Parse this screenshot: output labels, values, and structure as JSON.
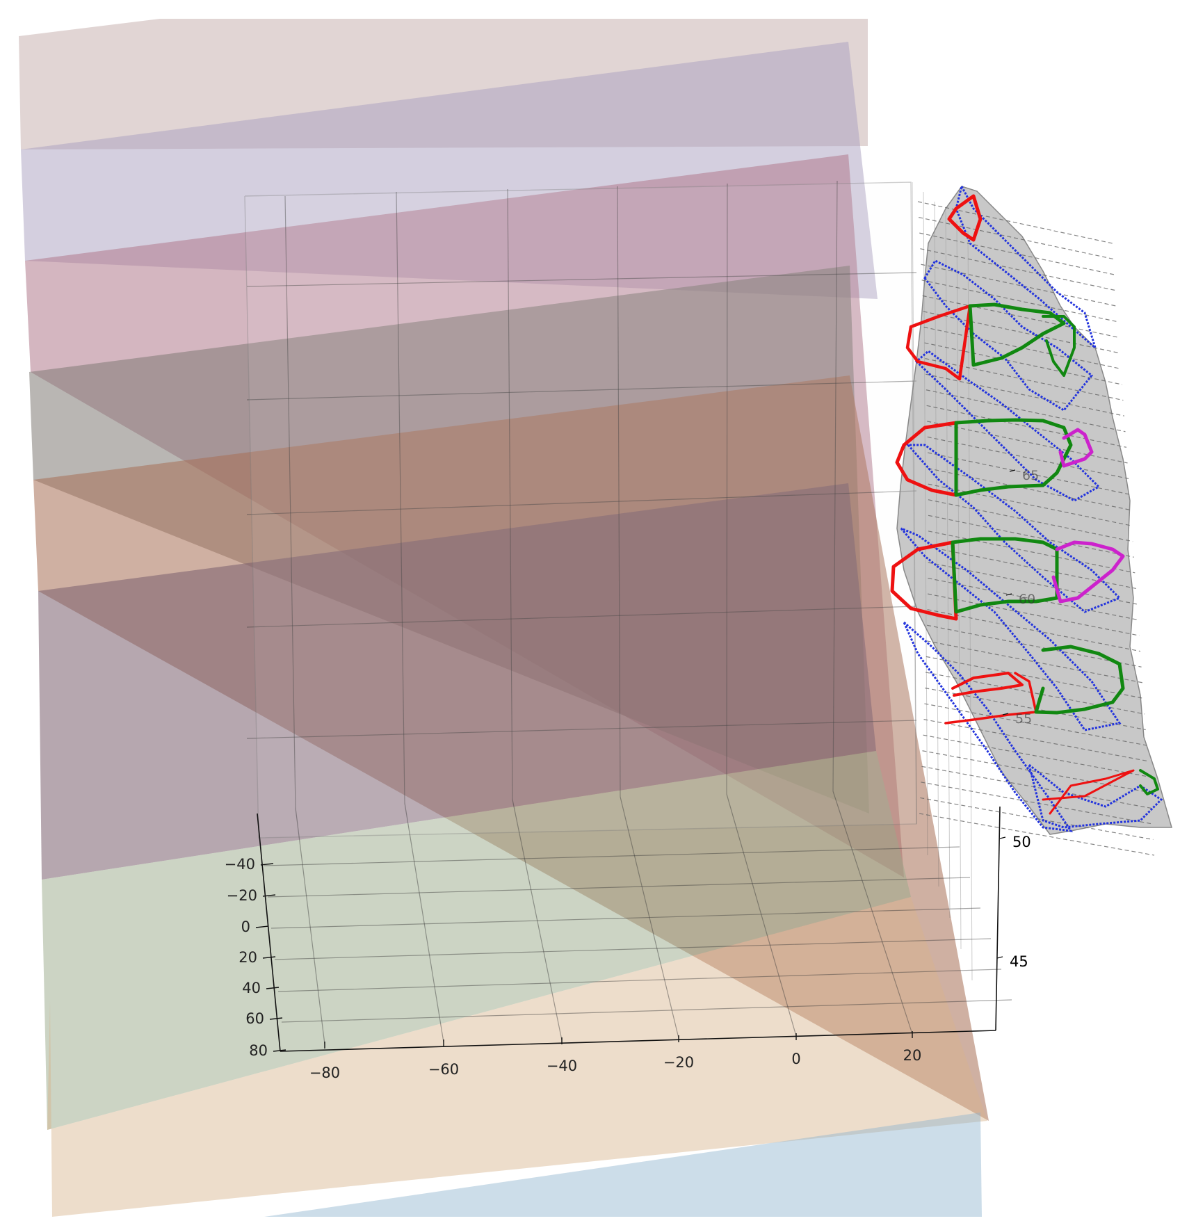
{
  "chart_data": {
    "type": "3d-surface",
    "title": "",
    "xlabel": "",
    "ylabel": "",
    "zlabel": "",
    "axes": {
      "x": {
        "ticks": [
          "−80",
          "−60",
          "−40",
          "−20",
          "0",
          "20"
        ],
        "range": [
          -90,
          30
        ]
      },
      "y": {
        "ticks": [
          "−40",
          "−20",
          "0",
          "20",
          "40",
          "60",
          "80"
        ],
        "range": [
          -50,
          90
        ]
      },
      "z": {
        "ticks": [
          "45",
          "50",
          "55",
          "60",
          "65"
        ],
        "range": [
          42,
          68
        ]
      }
    },
    "grid": true,
    "planes": [
      {
        "color": "#c9b3b0"
      },
      {
        "color": "#a9a0bf"
      },
      {
        "color": "#b07a8c"
      },
      {
        "color": "#807a74"
      },
      {
        "color": "#a86f55"
      },
      {
        "color": "#7a5e6e"
      },
      {
        "color": "#9aa98a"
      },
      {
        "color": "#d6b38c"
      },
      {
        "color": "#8fb3cf"
      }
    ],
    "surface": {
      "mesh_color": "#888888",
      "outline_color": "#2233dd"
    },
    "contours": [
      {
        "color": "#ee1111"
      },
      {
        "color": "#118811"
      },
      {
        "color": "#cc22cc"
      }
    ]
  }
}
